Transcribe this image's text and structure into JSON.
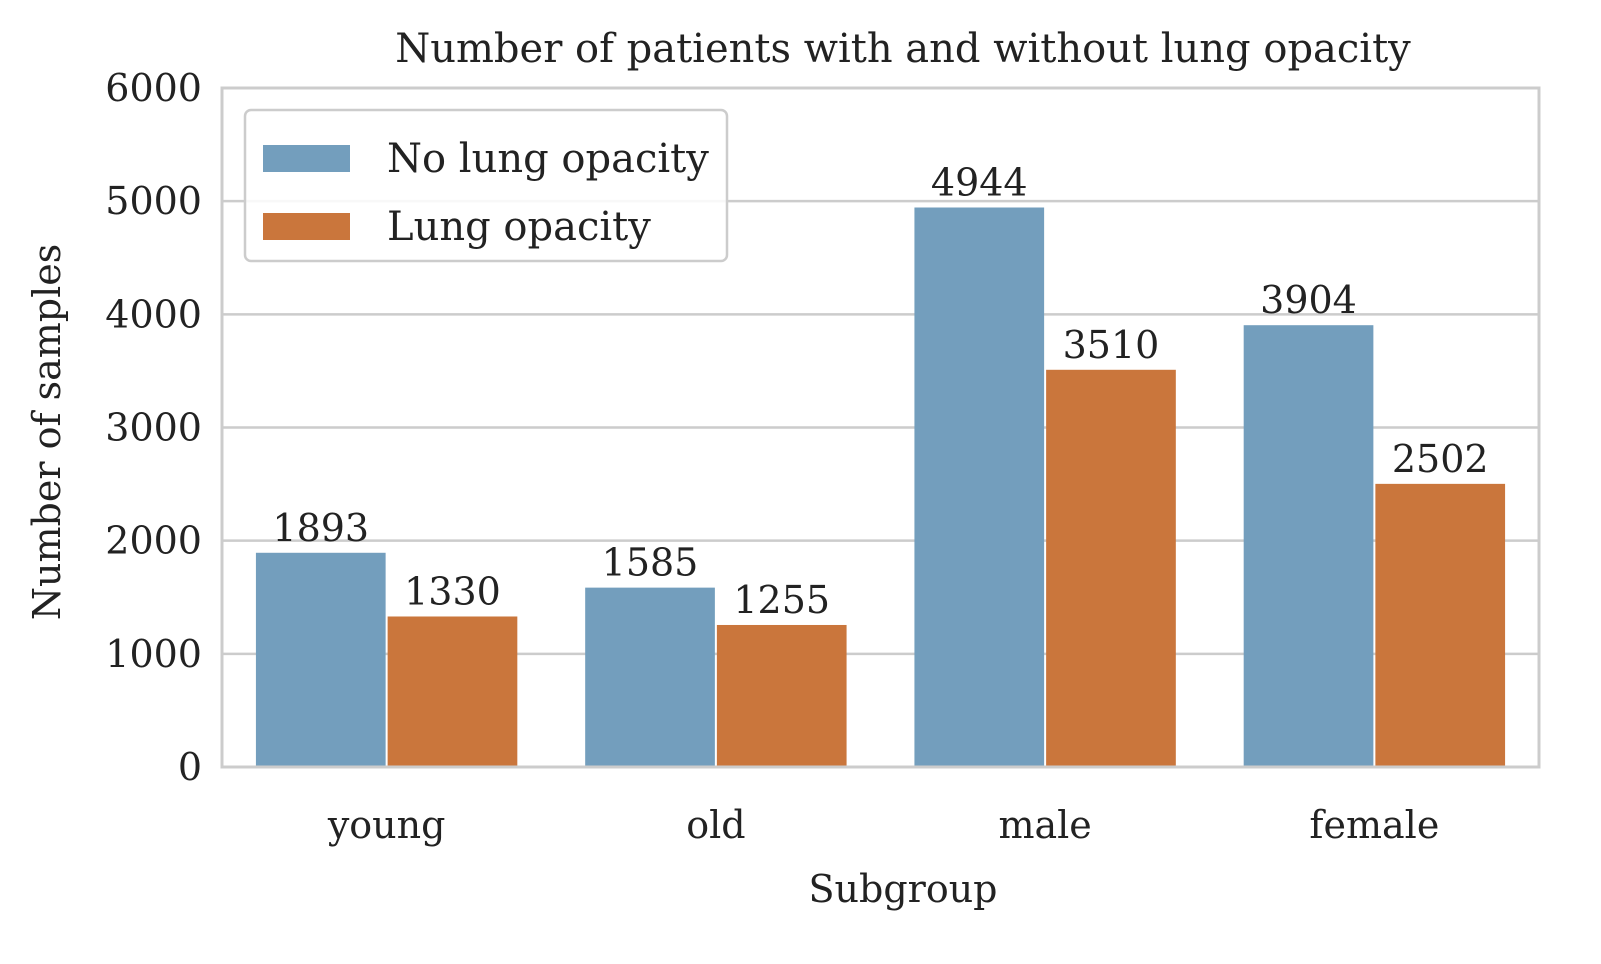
{
  "chart_data": {
    "type": "bar",
    "title": "Number of patients with and without lung opacity",
    "xlabel": "Subgroup",
    "ylabel": "Number of samples",
    "categories": [
      "young",
      "old",
      "male",
      "female"
    ],
    "series": [
      {
        "name": "No lung opacity",
        "color": "#739EBD",
        "values": [
          1893,
          1585,
          4944,
          3904
        ]
      },
      {
        "name": "Lung opacity",
        "color": "#CA763C",
        "values": [
          1330,
          1255,
          3510,
          2502
        ]
      }
    ],
    "ylim": [
      0,
      6000
    ],
    "yticks": [
      0,
      1000,
      2000,
      3000,
      4000,
      5000,
      6000
    ],
    "grid": true,
    "legend_position": "upper-left",
    "show_value_labels": true
  }
}
